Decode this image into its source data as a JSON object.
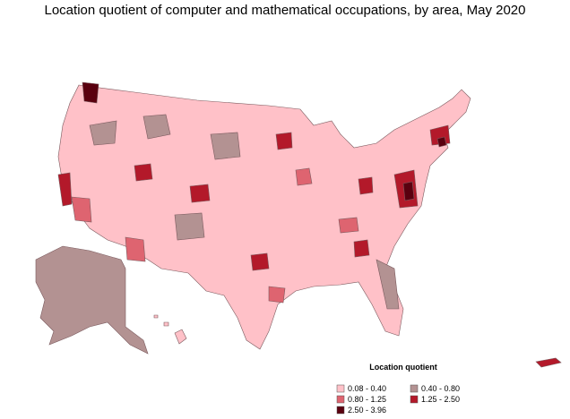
{
  "title": "Location quotient of computer and mathematical occupations, by area, May 2020",
  "legend": {
    "title": "Location quotient",
    "items": [
      {
        "label": "0.08 - 0.40",
        "color": "#ffc1c8"
      },
      {
        "label": "0.40 - 0.80",
        "color": "#b39292"
      },
      {
        "label": "0.80 - 1.25",
        "color": "#de6470"
      },
      {
        "label": "1.25 - 2.50",
        "color": "#b3192a"
      },
      {
        "label": "2.50 - 3.96",
        "color": "#5a000f"
      }
    ]
  }
}
